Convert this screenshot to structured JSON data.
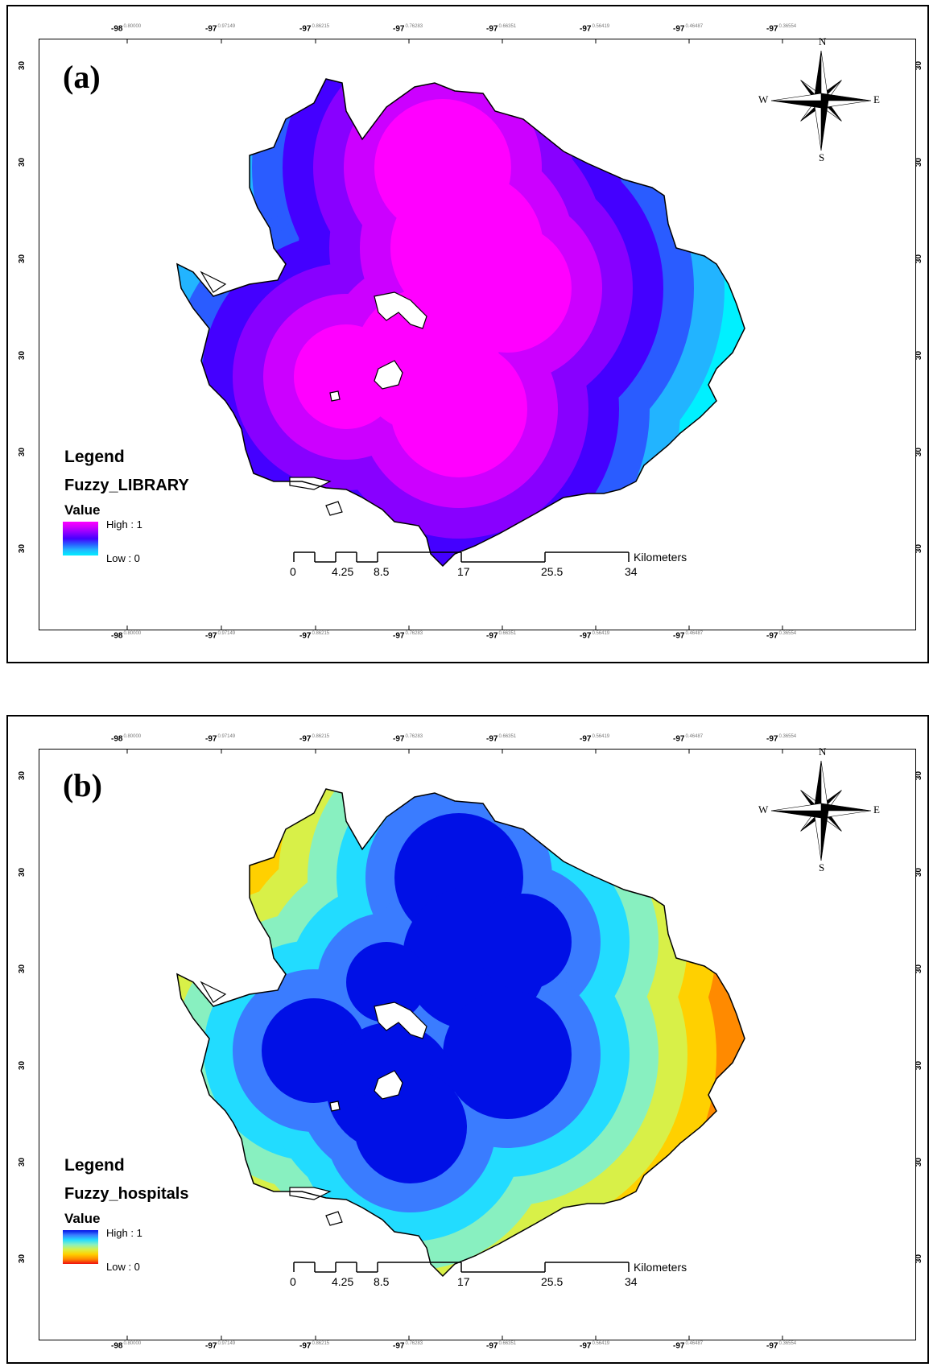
{
  "panels": [
    {
      "label": "(a)",
      "legend_title": "Legend",
      "layer_name": "Fuzzy_LIBRARY",
      "value_label": "Value",
      "high_label": "High : 1",
      "low_label": "Low : 0",
      "ramp_colors": [
        "#ff00ff",
        "#cc00ff",
        "#8800ff",
        "#4400ff",
        "#2a5cff",
        "#22b4ff",
        "#00f0ff"
      ],
      "top_ticks": [
        [
          "-98",
          "0.80000"
        ],
        [
          "-97",
          "0.97149"
        ],
        [
          "-97",
          "0.86215"
        ],
        [
          "-97",
          "0.76283"
        ],
        [
          "-97",
          "0.66351"
        ],
        [
          "-97",
          "0.56419"
        ],
        [
          "-97",
          "0.46487"
        ],
        [
          "-97",
          "0.36554"
        ]
      ],
      "bottom_ticks": [
        [
          "-98",
          "0.80000"
        ],
        [
          "-97",
          "0.97149"
        ],
        [
          "-97",
          "0.86215"
        ],
        [
          "-97",
          "0.76283"
        ],
        [
          "-97",
          "0.66351"
        ],
        [
          "-97",
          "0.56419"
        ],
        [
          "-97",
          "0.46487"
        ],
        [
          "-97",
          "0.36554"
        ]
      ],
      "side_ticks": [
        "30",
        "30",
        "30",
        "30",
        "30",
        "30"
      ]
    },
    {
      "label": "(b)",
      "legend_title": "Legend",
      "layer_name": "Fuzzy_hospitals",
      "value_label": "Value",
      "high_label": "High : 1",
      "low_label": "Low : 0",
      "ramp_colors": [
        "#0010e6",
        "#3a7cff",
        "#22dcff",
        "#88f0c0",
        "#d8f048",
        "#ffd000",
        "#ff8a00",
        "#ee1010"
      ],
      "top_ticks": [
        [
          "-98",
          "0.80000"
        ],
        [
          "-97",
          "0.97149"
        ],
        [
          "-97",
          "0.86215"
        ],
        [
          "-97",
          "0.76283"
        ],
        [
          "-97",
          "0.66351"
        ],
        [
          "-97",
          "0.56419"
        ],
        [
          "-97",
          "0.46487"
        ],
        [
          "-97",
          "0.36554"
        ]
      ],
      "bottom_ticks": [
        [
          "-98",
          "0.80000"
        ],
        [
          "-97",
          "0.97149"
        ],
        [
          "-97",
          "0.86215"
        ],
        [
          "-97",
          "0.76283"
        ],
        [
          "-97",
          "0.66351"
        ],
        [
          "-97",
          "0.56419"
        ],
        [
          "-97",
          "0.46487"
        ],
        [
          "-97",
          "0.36554"
        ]
      ],
      "side_ticks": [
        "30",
        "30",
        "30",
        "30",
        "30",
        "30"
      ]
    }
  ],
  "scale_bar": {
    "ticks": [
      "0",
      "4.25",
      "8.5",
      "17",
      "25.5",
      "34"
    ],
    "unit": "Kilometers"
  },
  "compass": {
    "n": "N",
    "s": "S",
    "e": "E",
    "w": "W"
  }
}
